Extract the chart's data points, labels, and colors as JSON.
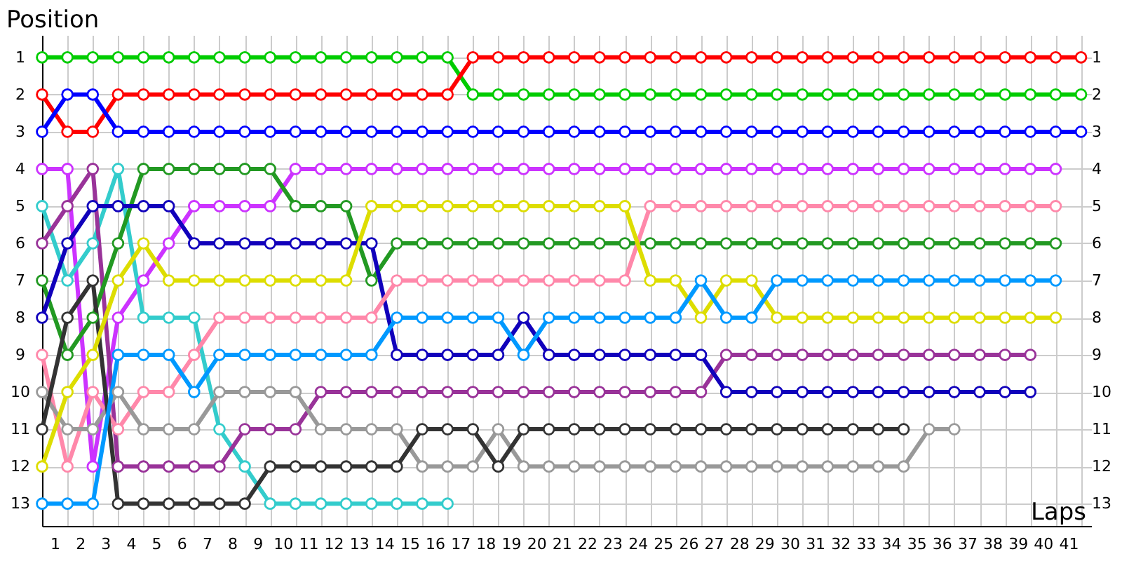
{
  "chart_data": {
    "type": "line",
    "xlabel": "Laps",
    "ylabel": "Position",
    "x": [
      0,
      1,
      2,
      3,
      4,
      5,
      6,
      7,
      8,
      9,
      10,
      11,
      12,
      13,
      14,
      15,
      16,
      17,
      18,
      19,
      20,
      21,
      22,
      23,
      24,
      25,
      26,
      27,
      28,
      29,
      30,
      31,
      32,
      33,
      34,
      35,
      36,
      37,
      38,
      39,
      40,
      41
    ],
    "xlim": [
      0,
      41.4
    ],
    "xticks": [
      {
        "value": 0,
        "label": null
      },
      {
        "value": 0.5,
        "label": "1"
      },
      {
        "value": 1,
        "label": null
      },
      {
        "value": 1.5,
        "label": "2"
      },
      {
        "value": 2,
        "label": null
      },
      {
        "value": 2.5,
        "label": "3"
      },
      {
        "value": 3,
        "label": null
      },
      {
        "value": 3.5,
        "label": "4"
      },
      {
        "value": 4,
        "label": null
      },
      {
        "value": 4.5,
        "label": "5"
      },
      {
        "value": 5,
        "label": null
      },
      {
        "value": 5.5,
        "label": "6"
      },
      {
        "value": 6,
        "label": null
      },
      {
        "value": 6.5,
        "label": "7"
      },
      {
        "value": 7,
        "label": null
      },
      {
        "value": 7.5,
        "label": "8"
      },
      {
        "value": 8,
        "label": null
      },
      {
        "value": 8.5,
        "label": "9"
      },
      {
        "value": 9,
        "label": null
      },
      {
        "value": 9.5,
        "label": "10"
      },
      {
        "value": 10,
        "label": null
      },
      {
        "value": 10.5,
        "label": "11"
      },
      {
        "value": 11,
        "label": null
      },
      {
        "value": 11.5,
        "label": "12"
      },
      {
        "value": 12,
        "label": null
      },
      {
        "value": 12.5,
        "label": "13"
      },
      {
        "value": 13,
        "label": null
      },
      {
        "value": 13.5,
        "label": "14"
      },
      {
        "value": 14,
        "label": null
      },
      {
        "value": 14.5,
        "label": "15"
      },
      {
        "value": 15,
        "label": null
      },
      {
        "value": 15.5,
        "label": "16"
      },
      {
        "value": 16,
        "label": null
      },
      {
        "value": 16.5,
        "label": "17"
      },
      {
        "value": 17,
        "label": null
      },
      {
        "value": 17.5,
        "label": "18"
      },
      {
        "value": 18,
        "label": null
      },
      {
        "value": 18.5,
        "label": "19"
      },
      {
        "value": 19,
        "label": null
      },
      {
        "value": 19.5,
        "label": "20"
      },
      {
        "value": 20,
        "label": null
      },
      {
        "value": 20.5,
        "label": "21"
      },
      {
        "value": 21,
        "label": null
      },
      {
        "value": 21.5,
        "label": "22"
      },
      {
        "value": 22,
        "label": null
      },
      {
        "value": 22.5,
        "label": "23"
      },
      {
        "value": 23,
        "label": null
      },
      {
        "value": 23.5,
        "label": "24"
      },
      {
        "value": 24,
        "label": null
      },
      {
        "value": 24.5,
        "label": "25"
      },
      {
        "value": 25,
        "label": null
      },
      {
        "value": 25.5,
        "label": "26"
      },
      {
        "value": 26,
        "label": null
      },
      {
        "value": 26.5,
        "label": "27"
      },
      {
        "value": 27,
        "label": null
      },
      {
        "value": 27.5,
        "label": "28"
      },
      {
        "value": 28,
        "label": null
      },
      {
        "value": 28.5,
        "label": "29"
      },
      {
        "value": 29,
        "label": null
      },
      {
        "value": 29.5,
        "label": "30"
      },
      {
        "value": 30,
        "label": null
      },
      {
        "value": 30.5,
        "label": "31"
      },
      {
        "value": 31,
        "label": null
      },
      {
        "value": 31.5,
        "label": "32"
      },
      {
        "value": 32,
        "label": null
      },
      {
        "value": 32.5,
        "label": "33"
      },
      {
        "value": 33,
        "label": null
      },
      {
        "value": 33.5,
        "label": "34"
      },
      {
        "value": 34,
        "label": null
      },
      {
        "value": 34.5,
        "label": "35"
      },
      {
        "value": 35,
        "label": null
      },
      {
        "value": 35.5,
        "label": "36"
      },
      {
        "value": 36,
        "label": null
      },
      {
        "value": 36.5,
        "label": "37"
      },
      {
        "value": 37,
        "label": null
      },
      {
        "value": 37.5,
        "label": "38"
      },
      {
        "value": 38,
        "label": null
      },
      {
        "value": 38.5,
        "label": "39"
      },
      {
        "value": 39,
        "label": null
      },
      {
        "value": 39.5,
        "label": "40"
      },
      {
        "value": 40,
        "label": null
      },
      {
        "value": 40.5,
        "label": "41"
      },
      {
        "value": 41,
        "label": null
      }
    ],
    "ylim": [
      13.6,
      0.4
    ],
    "yticks": [
      1,
      2,
      3,
      4,
      5,
      6,
      7,
      8,
      9,
      10,
      11,
      12,
      13
    ],
    "y2lim": [
      13.6,
      0.4
    ],
    "y2ticks": [
      1,
      2,
      3,
      4,
      5,
      6,
      7,
      8,
      9,
      10,
      11,
      12,
      13
    ],
    "grid": true,
    "marker": "circle",
    "line_style": "solid",
    "series": [
      {
        "color": "#00cc00",
        "values": [
          1,
          1,
          1,
          1,
          1,
          1,
          1,
          1,
          1,
          1,
          1,
          1,
          1,
          1,
          1,
          1,
          1,
          2,
          2,
          2,
          2,
          2,
          2,
          2,
          2,
          2,
          2,
          2,
          2,
          2,
          2,
          2,
          2,
          2,
          2,
          2,
          2,
          2,
          2,
          2,
          2,
          2
        ]
      },
      {
        "color": "#ff0000",
        "values": [
          2,
          3,
          3,
          2,
          2,
          2,
          2,
          2,
          2,
          2,
          2,
          2,
          2,
          2,
          2,
          2,
          2,
          1,
          1,
          1,
          1,
          1,
          1,
          1,
          1,
          1,
          1,
          1,
          1,
          1,
          1,
          1,
          1,
          1,
          1,
          1,
          1,
          1,
          1,
          1,
          1,
          1
        ]
      },
      {
        "color": "#0000ff",
        "values": [
          3,
          2,
          2,
          3,
          3,
          3,
          3,
          3,
          3,
          3,
          3,
          3,
          3,
          3,
          3,
          3,
          3,
          3,
          3,
          3,
          3,
          3,
          3,
          3,
          3,
          3,
          3,
          3,
          3,
          3,
          3,
          3,
          3,
          3,
          3,
          3,
          3,
          3,
          3,
          3,
          3,
          3
        ]
      },
      {
        "color": "#cc33ff",
        "values": [
          4,
          4,
          12,
          8,
          7,
          6,
          5,
          5,
          5,
          5,
          4,
          4,
          4,
          4,
          4,
          4,
          4,
          4,
          4,
          4,
          4,
          4,
          4,
          4,
          4,
          4,
          4,
          4,
          4,
          4,
          4,
          4,
          4,
          4,
          4,
          4,
          4,
          4,
          4,
          4,
          4,
          null
        ]
      },
      {
        "color": "#33cccc",
        "values": [
          5,
          7,
          6,
          4,
          8,
          8,
          8,
          11,
          12,
          13,
          13,
          13,
          13,
          13,
          13,
          13,
          13,
          null,
          null,
          null,
          null,
          null,
          null,
          null,
          null,
          null,
          null,
          null,
          null,
          null,
          null,
          null,
          null,
          null,
          null,
          null,
          null,
          null,
          null,
          null,
          null,
          null
        ]
      },
      {
        "color": "#993399",
        "values": [
          6,
          5,
          4,
          12,
          12,
          12,
          12,
          12,
          11,
          11,
          11,
          10,
          10,
          10,
          10,
          10,
          10,
          10,
          10,
          10,
          10,
          10,
          10,
          10,
          10,
          10,
          10,
          9,
          9,
          9,
          9,
          9,
          9,
          9,
          9,
          9,
          9,
          9,
          9,
          9,
          null,
          null
        ]
      },
      {
        "color": "#229922",
        "values": [
          7,
          9,
          8,
          6,
          4,
          4,
          4,
          4,
          4,
          4,
          5,
          5,
          5,
          7,
          6,
          6,
          6,
          6,
          6,
          6,
          6,
          6,
          6,
          6,
          6,
          6,
          6,
          6,
          6,
          6,
          6,
          6,
          6,
          6,
          6,
          6,
          6,
          6,
          6,
          6,
          6,
          null
        ]
      },
      {
        "color": "#1100bb",
        "values": [
          8,
          6,
          5,
          5,
          5,
          5,
          6,
          6,
          6,
          6,
          6,
          6,
          6,
          6,
          9,
          9,
          9,
          9,
          9,
          8,
          9,
          9,
          9,
          9,
          9,
          9,
          9,
          10,
          10,
          10,
          10,
          10,
          10,
          10,
          10,
          10,
          10,
          10,
          10,
          10,
          null,
          null
        ]
      },
      {
        "color": "#ff88aa",
        "values": [
          9,
          12,
          10,
          11,
          10,
          10,
          9,
          8,
          8,
          8,
          8,
          8,
          8,
          8,
          7,
          7,
          7,
          7,
          7,
          7,
          7,
          7,
          7,
          7,
          5,
          5,
          5,
          5,
          5,
          5,
          5,
          5,
          5,
          5,
          5,
          5,
          5,
          5,
          5,
          5,
          5,
          null
        ]
      },
      {
        "color": "#999999",
        "values": [
          10,
          11,
          11,
          10,
          11,
          11,
          11,
          10,
          10,
          10,
          10,
          11,
          11,
          11,
          11,
          12,
          12,
          12,
          11,
          12,
          12,
          12,
          12,
          12,
          12,
          12,
          12,
          12,
          12,
          12,
          12,
          12,
          12,
          12,
          12,
          11,
          11,
          null,
          null,
          null,
          null,
          null
        ]
      },
      {
        "color": "#333333",
        "values": [
          11,
          8,
          7,
          13,
          13,
          13,
          13,
          13,
          13,
          12,
          12,
          12,
          12,
          12,
          12,
          11,
          11,
          11,
          12,
          11,
          11,
          11,
          11,
          11,
          11,
          11,
          11,
          11,
          11,
          11,
          11,
          11,
          11,
          11,
          11,
          null,
          null,
          null,
          null,
          null,
          null,
          null
        ]
      },
      {
        "color": "#dddd00",
        "values": [
          12,
          10,
          9,
          7,
          6,
          7,
          7,
          7,
          7,
          7,
          7,
          7,
          7,
          5,
          5,
          5,
          5,
          5,
          5,
          5,
          5,
          5,
          5,
          5,
          7,
          7,
          8,
          7,
          7,
          8,
          8,
          8,
          8,
          8,
          8,
          8,
          8,
          8,
          8,
          8,
          8,
          null
        ]
      },
      {
        "color": "#0099ff",
        "values": [
          13,
          13,
          13,
          9,
          9,
          9,
          10,
          9,
          9,
          9,
          9,
          9,
          9,
          9,
          8,
          8,
          8,
          8,
          8,
          9,
          8,
          8,
          8,
          8,
          8,
          8,
          7,
          8,
          8,
          7,
          7,
          7,
          7,
          7,
          7,
          7,
          7,
          7,
          7,
          7,
          7,
          null
        ]
      }
    ]
  }
}
